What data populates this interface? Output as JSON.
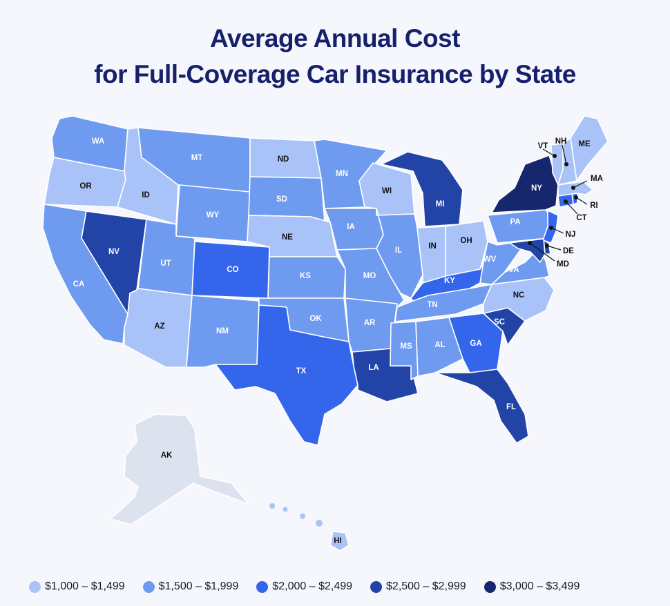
{
  "title": {
    "line1": "Average Annual Cost",
    "line2": "for Full-Coverage Car Insurance by State"
  },
  "colors": {
    "tier1": "#a9c3f8",
    "tier2": "#6e9af0",
    "tier3": "#3466ec",
    "tier4": "#2244a6",
    "tier5": "#17276e",
    "territory": "#dde3ee"
  },
  "legend": [
    {
      "label": "$1,000 – $1,499",
      "tier": "tier1"
    },
    {
      "label": "$1,500 – $1,999",
      "tier": "tier2"
    },
    {
      "label": "$2,000 – $2,499",
      "tier": "tier3"
    },
    {
      "label": "$2,500 – $2,999",
      "tier": "tier4"
    },
    {
      "label": "$3,000 – $3,499",
      "tier": "tier5"
    }
  ],
  "states": {
    "WA": "tier2",
    "OR": "tier1",
    "CA": "tier2",
    "ID": "tier1",
    "NV": "tier4",
    "MT": "tier2",
    "WY": "tier2",
    "UT": "tier2",
    "AZ": "tier1",
    "CO": "tier3",
    "NM": "tier2",
    "ND": "tier1",
    "SD": "tier2",
    "NE": "tier1",
    "KS": "tier2",
    "OK": "tier2",
    "TX": "tier3",
    "MN": "tier2",
    "IA": "tier2",
    "MO": "tier2",
    "AR": "tier2",
    "LA": "tier4",
    "WI": "tier1",
    "IL": "tier2",
    "MI": "tier4",
    "IN": "tier1",
    "OH": "tier1",
    "KY": "tier3",
    "TN": "tier2",
    "MS": "tier2",
    "AL": "tier2",
    "GA": "tier3",
    "FL": "tier4",
    "SC": "tier4",
    "NC": "tier1",
    "VA": "tier2",
    "WV": "tier2",
    "PA": "tier2",
    "NY": "tier5",
    "NJ": "tier3",
    "DE": "tier4",
    "MD": "tier4",
    "CT": "tier3",
    "RI": "tier3",
    "MA": "tier1",
    "VT": "tier1",
    "NH": "tier1",
    "ME": "tier1",
    "AK": "territory",
    "HI": "tier1"
  }
}
